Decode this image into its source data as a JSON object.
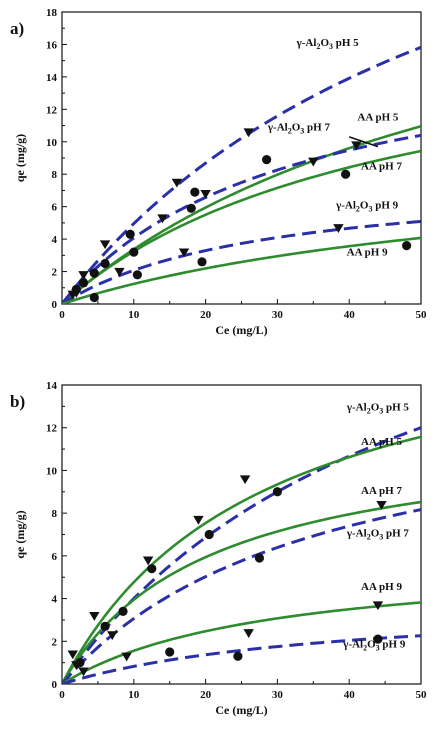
{
  "colors": {
    "model_green": "#2e8b2e",
    "model_blue": "#2b2fa8",
    "marker": "#111111",
    "axis": "#111111"
  },
  "chart_data": [
    {
      "panel_label": "a)",
      "type": "scatter",
      "xlabel": "Ce (mg/L)",
      "ylabel": "qe (mg/g)",
      "xlim": [
        0,
        50
      ],
      "ylim": [
        0,
        18
      ],
      "xticks": [
        "0",
        "10",
        "20",
        "30",
        "40",
        "50"
      ],
      "yticks": [
        "0",
        "2",
        "4",
        "6",
        "8",
        "10",
        "12",
        "14",
        "16",
        "18"
      ],
      "grid": false,
      "series": [
        {
          "name": "AA pH 5",
          "marker": "circle",
          "curve_style": "solid",
          "curve_color": "#2e8b2e",
          "fit": {
            "qm": 25,
            "k": 0.0156
          },
          "points": [
            [
              2,
              0.9
            ],
            [
              6,
              2.5
            ],
            [
              9.5,
              4.3
            ],
            [
              18.5,
              6.9
            ],
            [
              28.5,
              8.9
            ]
          ]
        },
        {
          "name": "γ-Al2O3 pH 7",
          "marker": "triangle",
          "curve_style": "dashed",
          "curve_color": "#2b2fa8",
          "fit": {
            "qm": 17,
            "k": 0.0315
          },
          "points": [
            [
              1.5,
              0.6
            ],
            [
              3,
              1.8
            ],
            [
              6,
              3.7
            ],
            [
              14,
              5.3
            ],
            [
              16,
              7.5
            ],
            [
              20,
              6.8
            ],
            [
              26,
              10.6
            ],
            [
              35,
              8.8
            ],
            [
              41,
              9.8
            ]
          ]
        },
        {
          "name": "AA pH 7",
          "marker": "circle",
          "curve_style": "solid",
          "curve_color": "#2e8b2e",
          "fit": {
            "qm": 18,
            "k": 0.022
          },
          "points": [
            [
              3,
              1.3
            ],
            [
              4.5,
              1.9
            ],
            [
              10,
              3.2
            ],
            [
              18,
              5.9
            ],
            [
              39.5,
              8
            ]
          ]
        },
        {
          "name": "γ-Al2O3 pH 5",
          "marker": "none",
          "curve_style": "dashed",
          "curve_color": "#2b2fa8",
          "fit": {
            "qm": 35,
            "k": 0.0165
          },
          "points": []
        },
        {
          "name": "γ-Al2O3 pH 9",
          "marker": "triangle",
          "curve_style": "dashed",
          "curve_color": "#2b2fa8",
          "fit": {
            "qm": 8,
            "k": 0.035
          },
          "points": [
            [
              2,
              0.7
            ],
            [
              8,
              2
            ],
            [
              17,
              3.2
            ],
            [
              38.5,
              4.7
            ]
          ]
        },
        {
          "name": "AA pH 9",
          "marker": "circle",
          "curve_style": "solid",
          "curve_color": "#2e8b2e",
          "fit": {
            "qm": 9.5,
            "k": 0.015
          },
          "points": [
            [
              4.5,
              0.4
            ],
            [
              10.5,
              1.8
            ],
            [
              19.5,
              2.6
            ],
            [
              48,
              3.6
            ]
          ]
        }
      ],
      "annotations": [
        {
          "text": "γ-Al",
          "sub": "2",
          "rest": "O",
          "sub2": "3",
          "tail": " pH 5",
          "x": 37,
          "y": 15.9
        },
        {
          "text": "AA pH 5",
          "x": 44,
          "y": 11.3
        },
        {
          "text": "γ-Al",
          "sub": "2",
          "rest": "O",
          "sub2": "3",
          "tail": " pH 7",
          "x": 33,
          "y": 10.7
        },
        {
          "text": "AA pH 7",
          "x": 44.5,
          "y": 8.3
        },
        {
          "text": "γ-Al",
          "sub": "2",
          "rest": "O",
          "sub2": "3",
          "tail": " pH 9",
          "x": 42.5,
          "y": 5.9
        },
        {
          "text": "AA pH 9",
          "x": 42.5,
          "y": 3
        }
      ]
    },
    {
      "panel_label": "b)",
      "type": "scatter",
      "xlabel": "Ce (mg/L)",
      "ylabel": "qe (mg/g)",
      "xlim": [
        0,
        50
      ],
      "ylim": [
        0,
        14
      ],
      "xticks": [
        "0",
        "10",
        "20",
        "30",
        "40",
        "50"
      ],
      "yticks": [
        "0",
        "2",
        "4",
        "6",
        "8",
        "10",
        "12",
        "14"
      ],
      "grid": false,
      "series": [
        {
          "name": "γ-Al2O3 pH 5",
          "marker": "triangle",
          "curve_style": "dashed",
          "curve_color": "#2b2fa8",
          "fit": {
            "qm": 24,
            "k": 0.02
          },
          "points": [
            [
              1.5,
              1.4
            ],
            [
              4.5,
              3.2
            ],
            [
              7,
              2.3
            ],
            [
              12,
              5.8
            ],
            [
              19,
              7.7
            ],
            [
              25.5,
              9.6
            ],
            [
              44.5,
              8.4
            ]
          ]
        },
        {
          "name": "AA pH 5",
          "marker": "circle",
          "curve_style": "solid",
          "curve_color": "#2e8b2e",
          "fit": {
            "qm": 18,
            "k": 0.036
          },
          "points": [
            [
              6,
              2.7
            ],
            [
              8.5,
              3.4
            ],
            [
              12.5,
              5.4
            ],
            [
              20.5,
              7
            ],
            [
              30,
              9
            ]
          ]
        },
        {
          "name": "AA pH 7",
          "marker": "none",
          "curve_style": "solid",
          "curve_color": "#2e8b2e",
          "fit": {
            "qm": 12,
            "k": 0.049
          },
          "points": []
        },
        {
          "name": "γ-Al2O3 pH 7",
          "marker": "circle",
          "curve_style": "dashed",
          "curve_color": "#2b2fa8",
          "fit": {
            "qm": 14,
            "k": 0.028
          },
          "points": [
            [
              27.5,
              5.9
            ]
          ]
        },
        {
          "name": "AA pH 9",
          "marker": "triangle",
          "curve_style": "solid",
          "curve_color": "#2e8b2e",
          "fit": {
            "qm": 6,
            "k": 0.035
          },
          "points": [
            [
              2,
              0.9
            ],
            [
              3,
              0.6
            ],
            [
              9,
              1.3
            ],
            [
              26,
              2.4
            ],
            [
              44,
              3.7
            ]
          ]
        },
        {
          "name": "γ-Al2O3 pH 9",
          "marker": "circle",
          "curve_style": "dashed",
          "curve_color": "#2b2fa8",
          "fit": {
            "qm": 4,
            "k": 0.026
          },
          "points": [
            [
              2.5,
              1
            ],
            [
              15,
              1.5
            ],
            [
              24.5,
              1.3
            ],
            [
              44,
              2.1
            ]
          ]
        }
      ],
      "annotations": [
        {
          "text": "γ-Al",
          "sub": "2",
          "rest": "O",
          "sub2": "3",
          "tail": " pH 5",
          "x": 44,
          "y": 12.8
        },
        {
          "text": "AA pH 5",
          "x": 44.5,
          "y": 11.2
        },
        {
          "text": "AA pH 7",
          "x": 44.5,
          "y": 8.9
        },
        {
          "text": "γ-Al",
          "sub": "2",
          "rest": "O",
          "sub2": "3",
          "tail": " pH 7",
          "x": 44,
          "y": 6.9
        },
        {
          "text": "AA pH 9",
          "x": 44.5,
          "y": 4.4
        },
        {
          "text": "γ-Al",
          "sub": "2",
          "rest": "O",
          "sub2": "3",
          "tail": " pH 9",
          "x": 43.5,
          "y": 1.7
        }
      ]
    }
  ]
}
